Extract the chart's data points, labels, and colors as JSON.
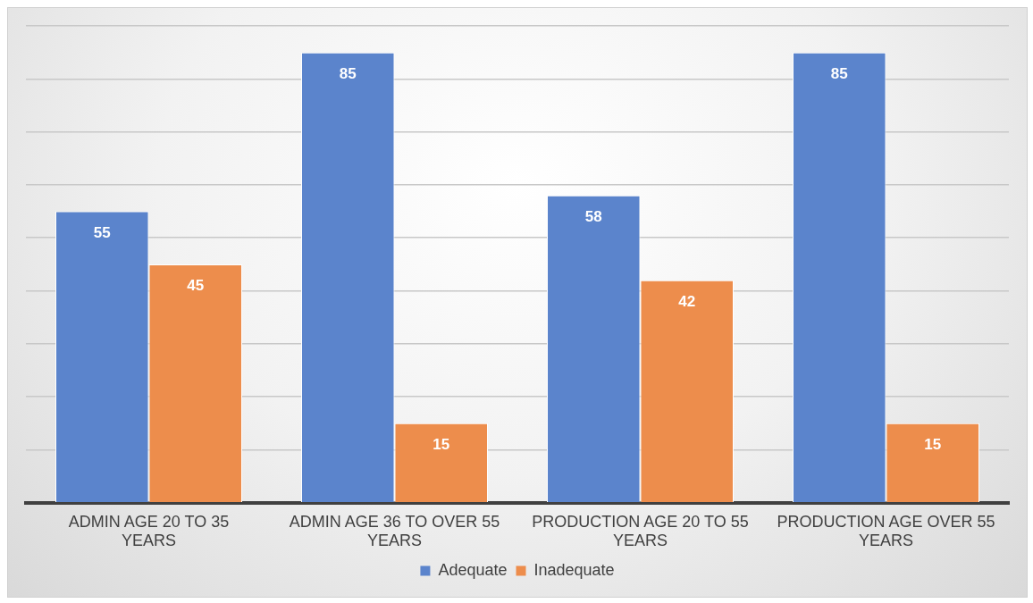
{
  "chart_data": {
    "type": "bar",
    "categories": [
      "ADMIN AGE 20 TO 35 YEARS",
      "ADMIN AGE 36 TO OVER 55 YEARS",
      "PRODUCTION AGE 20 TO 55 YEARS",
      "PRODUCTION AGE OVER 55 YEARS"
    ],
    "series": [
      {
        "name": "Adequate",
        "color": "#5b84cc",
        "values": [
          55,
          85,
          58,
          85
        ]
      },
      {
        "name": "Inadequate",
        "color": "#ed8d4c",
        "values": [
          45,
          15,
          42,
          15
        ]
      }
    ],
    "tick_labels": "x",
    "grid": "y",
    "legend": "bottom",
    "data_labels": true
  }
}
